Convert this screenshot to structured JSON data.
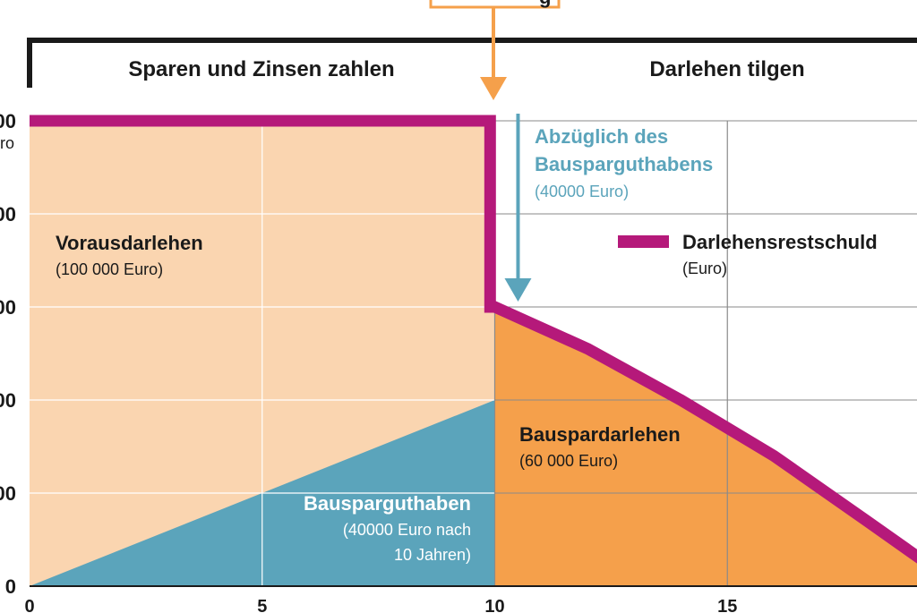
{
  "chart_data": {
    "type": "area",
    "xlabel": "",
    "ylabel": "",
    "x_ticks": [
      "0",
      "5",
      "10",
      "15"
    ],
    "y_ticks": [
      "0",
      "00",
      "00",
      "00",
      "00",
      "00"
    ],
    "y_unit_fragment": "ro",
    "xlim": [
      0,
      19.7
    ],
    "ylim": [
      0,
      100000
    ],
    "phases": {
      "phase1_label": "Sparen und Zinsen zahlen",
      "phase2_label": "Darlehen tilgen",
      "top_box_fragment": "g"
    },
    "series": [
      {
        "name": "Darlehensrestschuld",
        "unit": "(Euro)",
        "type": "line",
        "color": "#b5197a",
        "points": [
          [
            0,
            100000
          ],
          [
            9.9,
            100000
          ],
          [
            9.9,
            60000
          ],
          [
            10,
            60000
          ],
          [
            12,
            51000
          ],
          [
            14,
            40000
          ],
          [
            16,
            28000
          ],
          [
            18,
            14000
          ],
          [
            19.7,
            2000
          ]
        ]
      },
      {
        "name": "Vorausdarlehen",
        "amount": "(100 000 Euro)",
        "type": "area",
        "color": "#fad5b0",
        "points": [
          [
            0,
            100000
          ],
          [
            10,
            100000
          ],
          [
            10,
            0
          ],
          [
            0,
            0
          ]
        ]
      },
      {
        "name": "Bausparguthaben",
        "amount_line1": "(40000 Euro nach",
        "amount_line2": "10 Jahren)",
        "type": "area",
        "color": "#5ba4bb",
        "points": [
          [
            0,
            0
          ],
          [
            10,
            40000
          ],
          [
            10,
            0
          ]
        ]
      },
      {
        "name": "Bauspardarlehen",
        "amount": "(60 000 Euro)",
        "type": "area",
        "color": "#f5a04b",
        "points": [
          [
            10,
            0
          ],
          [
            10,
            60000
          ],
          [
            12,
            51000
          ],
          [
            14,
            40000
          ],
          [
            16,
            28000
          ],
          [
            18,
            14000
          ],
          [
            19.7,
            2000
          ],
          [
            19.7,
            0
          ]
        ]
      }
    ],
    "annotation": {
      "line1": "Abzüglich des",
      "line2": "Bausparguthabens",
      "line3": "(40000 Euro)",
      "color": "#5ba4bb",
      "arrow_x": 10.5,
      "arrow_from": 100000,
      "arrow_to": 60000
    },
    "legend": {
      "label": "Darlehensrestschuld",
      "sublabel": "(Euro)",
      "position": "right"
    },
    "grid": true
  }
}
